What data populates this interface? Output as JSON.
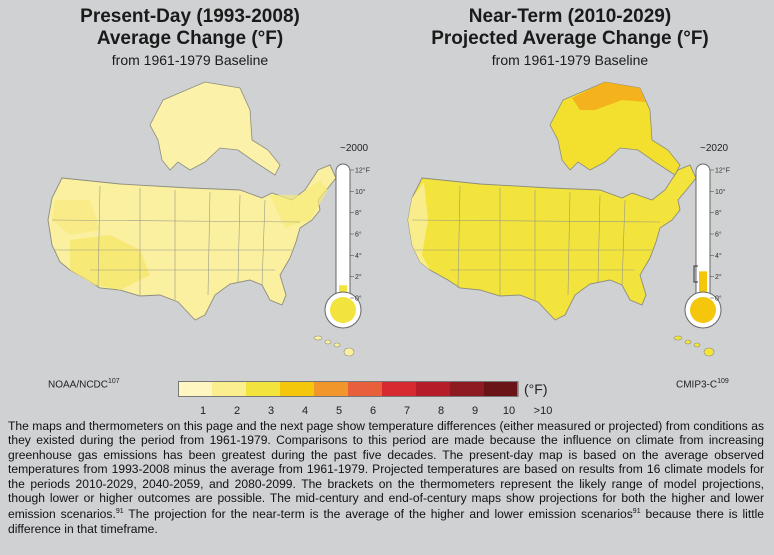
{
  "colors": {
    "background": "#cfd1d3",
    "scale": [
      "#fff6c2",
      "#fbee8e",
      "#f3e33d",
      "#f4c70d",
      "#f0962a",
      "#e8603b",
      "#d42a30",
      "#b51d28",
      "#8f1b22",
      "#6a1417"
    ]
  },
  "left_panel": {
    "title_line1": "Present-Day (1993-2008)",
    "title_line2": "Average Change (°F)",
    "subtitle": "from 1961-1979 Baseline",
    "credit": "NOAA/NCDC",
    "credit_ref": "107",
    "thermometer": {
      "year": "~2000",
      "labels": [
        "12°F",
        "10°",
        "8°",
        "6°",
        "4°",
        "2°",
        "0°"
      ],
      "fill_top_degF": 1.2,
      "bracket_degF": null
    }
  },
  "right_panel": {
    "title_line1": "Near-Term (2010-2029)",
    "title_line2": "Projected Average Change (°F)",
    "subtitle": "from 1961-1979 Baseline",
    "credit": "CMIP3-C",
    "credit_ref": "109",
    "thermometer": {
      "year": "~2020",
      "labels": [
        "12°F",
        "10°",
        "8°",
        "6°",
        "4°",
        "2°",
        "0°"
      ],
      "fill_top_degF": 2.5,
      "bracket_degF": [
        1.5,
        3
      ]
    }
  },
  "legend": {
    "ticks": [
      "1",
      "2",
      "3",
      "4",
      "5",
      "6",
      "7",
      "8",
      "9",
      "10",
      ">10"
    ],
    "unit": "(°F)"
  },
  "caption": {
    "part1": "The maps and thermometers on this page and the next page show temperature differences (either measured or projected) from conditions as they existed during the period from 1961-1979. Comparisons to this period are made because the influence on climate from increasing greenhouse gas emissions has been greatest during the past five decades. The present-day map is based on the average observed temperatures from 1993-2008 minus the average from 1961-1979. Projected temperatures are based on results from 16 climate models for the periods 2010-2029, 2040-2059, and 2080-2099. The brackets on the thermometers represent the likely range of model projections, though lower or higher outcomes are possible. The mid-century and end-of-century maps show projections for both the higher and lower emission scenarios.",
    "ref1": "91",
    "part2": " The projection for the near-term is the average of the higher and lower emission scenarios",
    "ref2": "91",
    "part3": " because there is little difference in that timeframe."
  }
}
